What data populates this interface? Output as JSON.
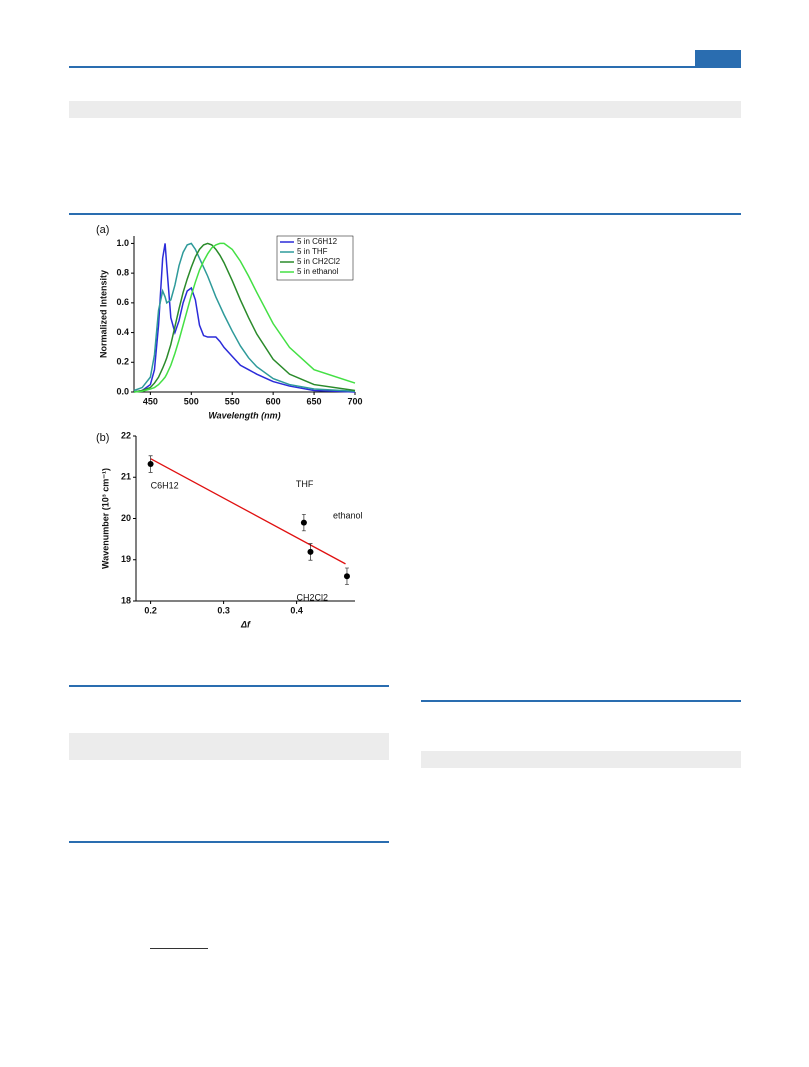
{
  "chart_data": [
    {
      "type": "line",
      "panel": "(a)",
      "x_label": "Wavelength (nm)",
      "y_label": "Normalized Intensity",
      "xlim": [
        430,
        700
      ],
      "ylim": [
        0,
        1.05
      ],
      "xticks": [
        450,
        500,
        550,
        600,
        650,
        700
      ],
      "yticks": [
        {
          "value": 0,
          "label": "0.0"
        },
        0.2,
        0.4,
        0.6,
        0.8,
        {
          "value": 1,
          "label": "1.0"
        }
      ],
      "legend": "top-right",
      "x": [
        430,
        440,
        450,
        455,
        460,
        465,
        468,
        470,
        475,
        480,
        485,
        490,
        495,
        500,
        505,
        510,
        515,
        520,
        525,
        530,
        535,
        540,
        550,
        560,
        570,
        580,
        600,
        620,
        650,
        700
      ],
      "series": [
        {
          "name": "5 in C6H12",
          "color": "#2b2bd9",
          "values": [
            0,
            0.01,
            0.05,
            0.15,
            0.45,
            0.9,
            1.0,
            0.85,
            0.5,
            0.4,
            0.48,
            0.6,
            0.68,
            0.7,
            0.62,
            0.45,
            0.38,
            0.37,
            0.37,
            0.37,
            0.34,
            0.3,
            0.24,
            0.18,
            0.15,
            0.12,
            0.07,
            0.04,
            0.01,
            0
          ]
        },
        {
          "name": "5 in THF",
          "color": "#2e9a9a",
          "values": [
            0.01,
            0.03,
            0.1,
            0.25,
            0.55,
            0.68,
            0.64,
            0.6,
            0.62,
            0.72,
            0.85,
            0.94,
            0.99,
            1.0,
            0.96,
            0.9,
            0.84,
            0.78,
            0.71,
            0.64,
            0.58,
            0.52,
            0.41,
            0.31,
            0.23,
            0.17,
            0.09,
            0.05,
            0.02,
            0.005
          ]
        },
        {
          "name": "5 in CH2Cl2",
          "color": "#2a8a2a",
          "values": [
            0,
            0.01,
            0.03,
            0.06,
            0.1,
            0.16,
            0.2,
            0.23,
            0.32,
            0.44,
            0.56,
            0.67,
            0.76,
            0.84,
            0.91,
            0.96,
            0.99,
            1.0,
            0.99,
            0.96,
            0.92,
            0.87,
            0.75,
            0.62,
            0.5,
            0.39,
            0.22,
            0.12,
            0.05,
            0.01
          ]
        },
        {
          "name": "5 in ethanol",
          "color": "#44e044",
          "values": [
            0,
            0.005,
            0.02,
            0.03,
            0.05,
            0.08,
            0.1,
            0.12,
            0.18,
            0.26,
            0.35,
            0.45,
            0.55,
            0.65,
            0.74,
            0.82,
            0.88,
            0.93,
            0.97,
            0.99,
            1.0,
            1.0,
            0.96,
            0.88,
            0.78,
            0.67,
            0.46,
            0.3,
            0.15,
            0.06
          ]
        }
      ]
    },
    {
      "type": "scatter",
      "panel": "(b)",
      "x_label": "Δf",
      "y_label": "Wavenumber (10³ cm⁻¹)",
      "xlim": [
        0.18,
        0.48
      ],
      "ylim": [
        18,
        22
      ],
      "xticks": [
        0.2,
        0.3,
        0.4
      ],
      "yticks": [
        18,
        19,
        20,
        21,
        22
      ],
      "x": [
        0.2,
        0.41,
        0.419,
        0.469
      ],
      "values": [
        21.32,
        19.9,
        19.19,
        18.6
      ],
      "errors": [
        0.2,
        0.2,
        0.2,
        0.2
      ],
      "point_labels": [
        "C6H12",
        "THF",
        "CH2Cl2",
        "ethanol"
      ],
      "color": "#000000",
      "fit": {
        "color": "#e01010",
        "x": [
          0.2,
          0.467
        ],
        "values": [
          21.45,
          18.9
        ]
      }
    }
  ]
}
